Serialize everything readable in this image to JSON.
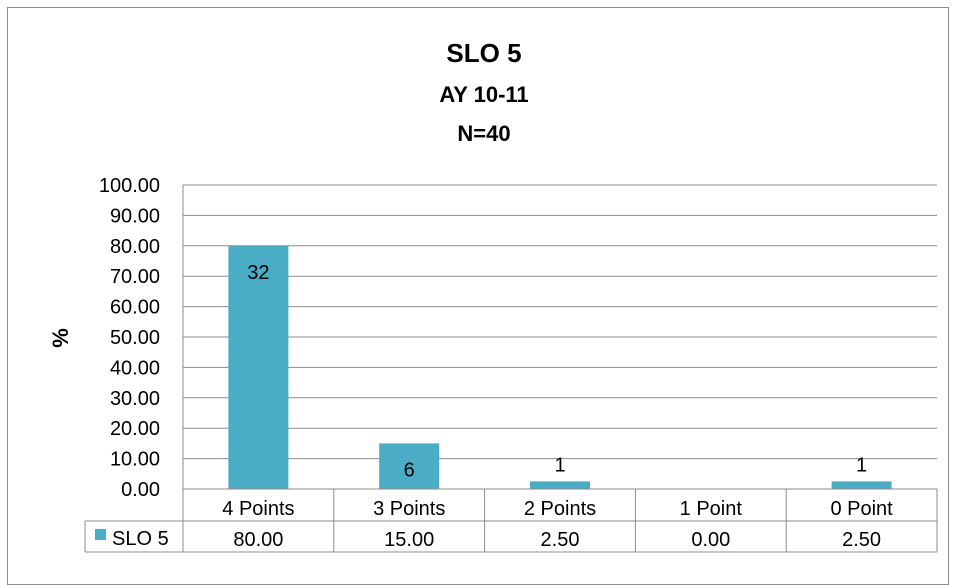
{
  "chart_data": {
    "type": "bar",
    "title": "SLO 5",
    "subtitle_lines": [
      "AY 10-11",
      "N=40"
    ],
    "xlabel": "",
    "ylabel": "%",
    "ylim": [
      0,
      100
    ],
    "yticks": [
      "0.00",
      "10.00",
      "20.00",
      "30.00",
      "40.00",
      "50.00",
      "60.00",
      "70.00",
      "80.00",
      "90.00",
      "100.00"
    ],
    "grid": true,
    "categories": [
      "4 Points",
      "3 Points",
      "2 Points",
      "1 Point",
      "0 Point"
    ],
    "series": [
      {
        "name": "SLO 5",
        "color": "#4bacc6",
        "values": [
          80.0,
          15.0,
          2.5,
          0.0,
          2.5
        ],
        "value_labels": [
          "80.00",
          "15.00",
          "2.50",
          "0.00",
          "2.50"
        ],
        "data_labels": [
          "32",
          "6",
          "1",
          "",
          "1"
        ]
      }
    ],
    "data_table": true
  }
}
